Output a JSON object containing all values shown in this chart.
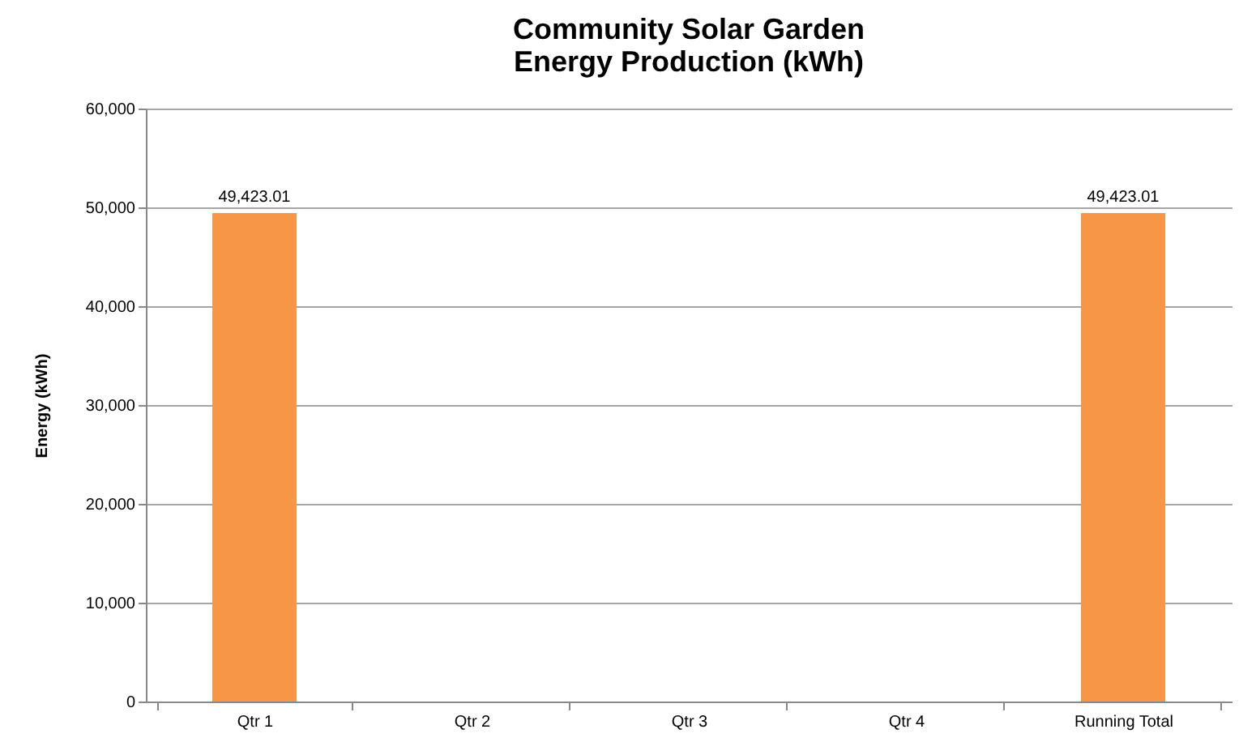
{
  "chart_data": {
    "type": "bar",
    "title": "Community Solar Garden\nEnergy Production (kWh)",
    "ylabel": "Energy (kWh)",
    "categories": [
      "Qtr 1",
      "Qtr 2",
      "Qtr 3",
      "Qtr 4",
      "Running Total"
    ],
    "values": [
      49423.01,
      null,
      null,
      null,
      49423.01
    ],
    "color": "#f79646",
    "value_labels": [
      "49,423.01",
      null,
      null,
      null,
      "49,423.01"
    ],
    "ylim": [
      0,
      60000
    ],
    "yticks": [
      0,
      {
        "value": 10000,
        "label": "10,000"
      },
      {
        "value": 20000,
        "label": "20,000"
      },
      {
        "value": 30000,
        "label": "30,000"
      },
      {
        "value": 40000,
        "label": "40,000"
      },
      {
        "value": 50000,
        "label": "50,000"
      },
      {
        "value": 60000,
        "label": "60,000"
      }
    ],
    "grid": "y"
  }
}
